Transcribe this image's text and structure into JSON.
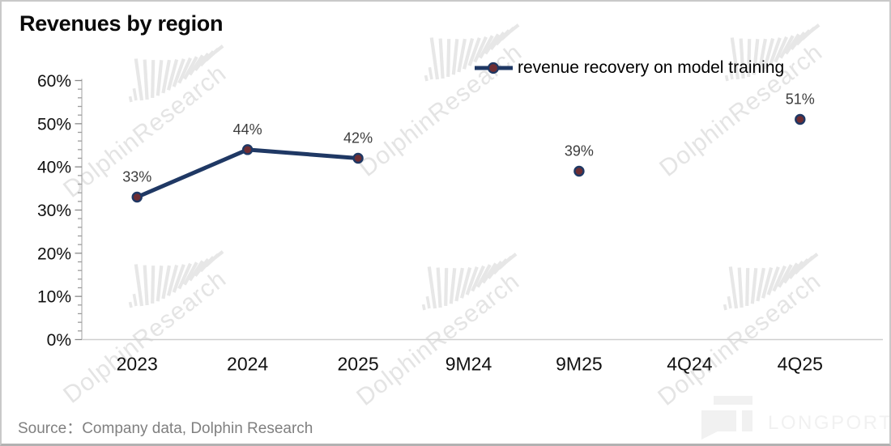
{
  "title": "Revenues by region",
  "legend": {
    "label": "revenue recovery on model training"
  },
  "source_text": "Source：Company data, Dolphin Research",
  "watermark": {
    "text": "DolphinResearch"
  },
  "brand": {
    "name": "LONGPORT"
  },
  "colors": {
    "series_line": "#1f3864",
    "marker_fill": "#6e2d33",
    "marker_stroke": "#1f3864",
    "data_label": "#3d3d3d",
    "axis_line": "#bdbdbd",
    "baseline": "#cfcfcf",
    "tick_mark": "#8a8a8a",
    "minor_tick": "#9d9d9d",
    "axis_text": "#111111",
    "source_text": "#808080",
    "watermark_text": "#e4e4e4",
    "watermark_logo": "#e7e7e7",
    "brand_watermark": "#f1f1f1"
  },
  "chart_data": {
    "type": "line",
    "title": "Revenues by region",
    "categories": [
      "2023",
      "2024",
      "2025",
      "9M24",
      "9M25",
      "4Q24",
      "4Q25"
    ],
    "series": [
      {
        "name": "revenue recovery on model training",
        "values": [
          33,
          44,
          42,
          null,
          39,
          null,
          51
        ],
        "labels": [
          "33%",
          "44%",
          "42%",
          null,
          "39%",
          null,
          "51%"
        ]
      }
    ],
    "unit": "%",
    "ylim": [
      0,
      60
    ],
    "ytick_step": 10,
    "yminor_step": 2,
    "ytick_labels": [
      "0%",
      "10%",
      "20%",
      "30%",
      "40%",
      "50%",
      "60%"
    ],
    "grid": false,
    "legend_position": "top-right",
    "gaps_break_line": true
  }
}
